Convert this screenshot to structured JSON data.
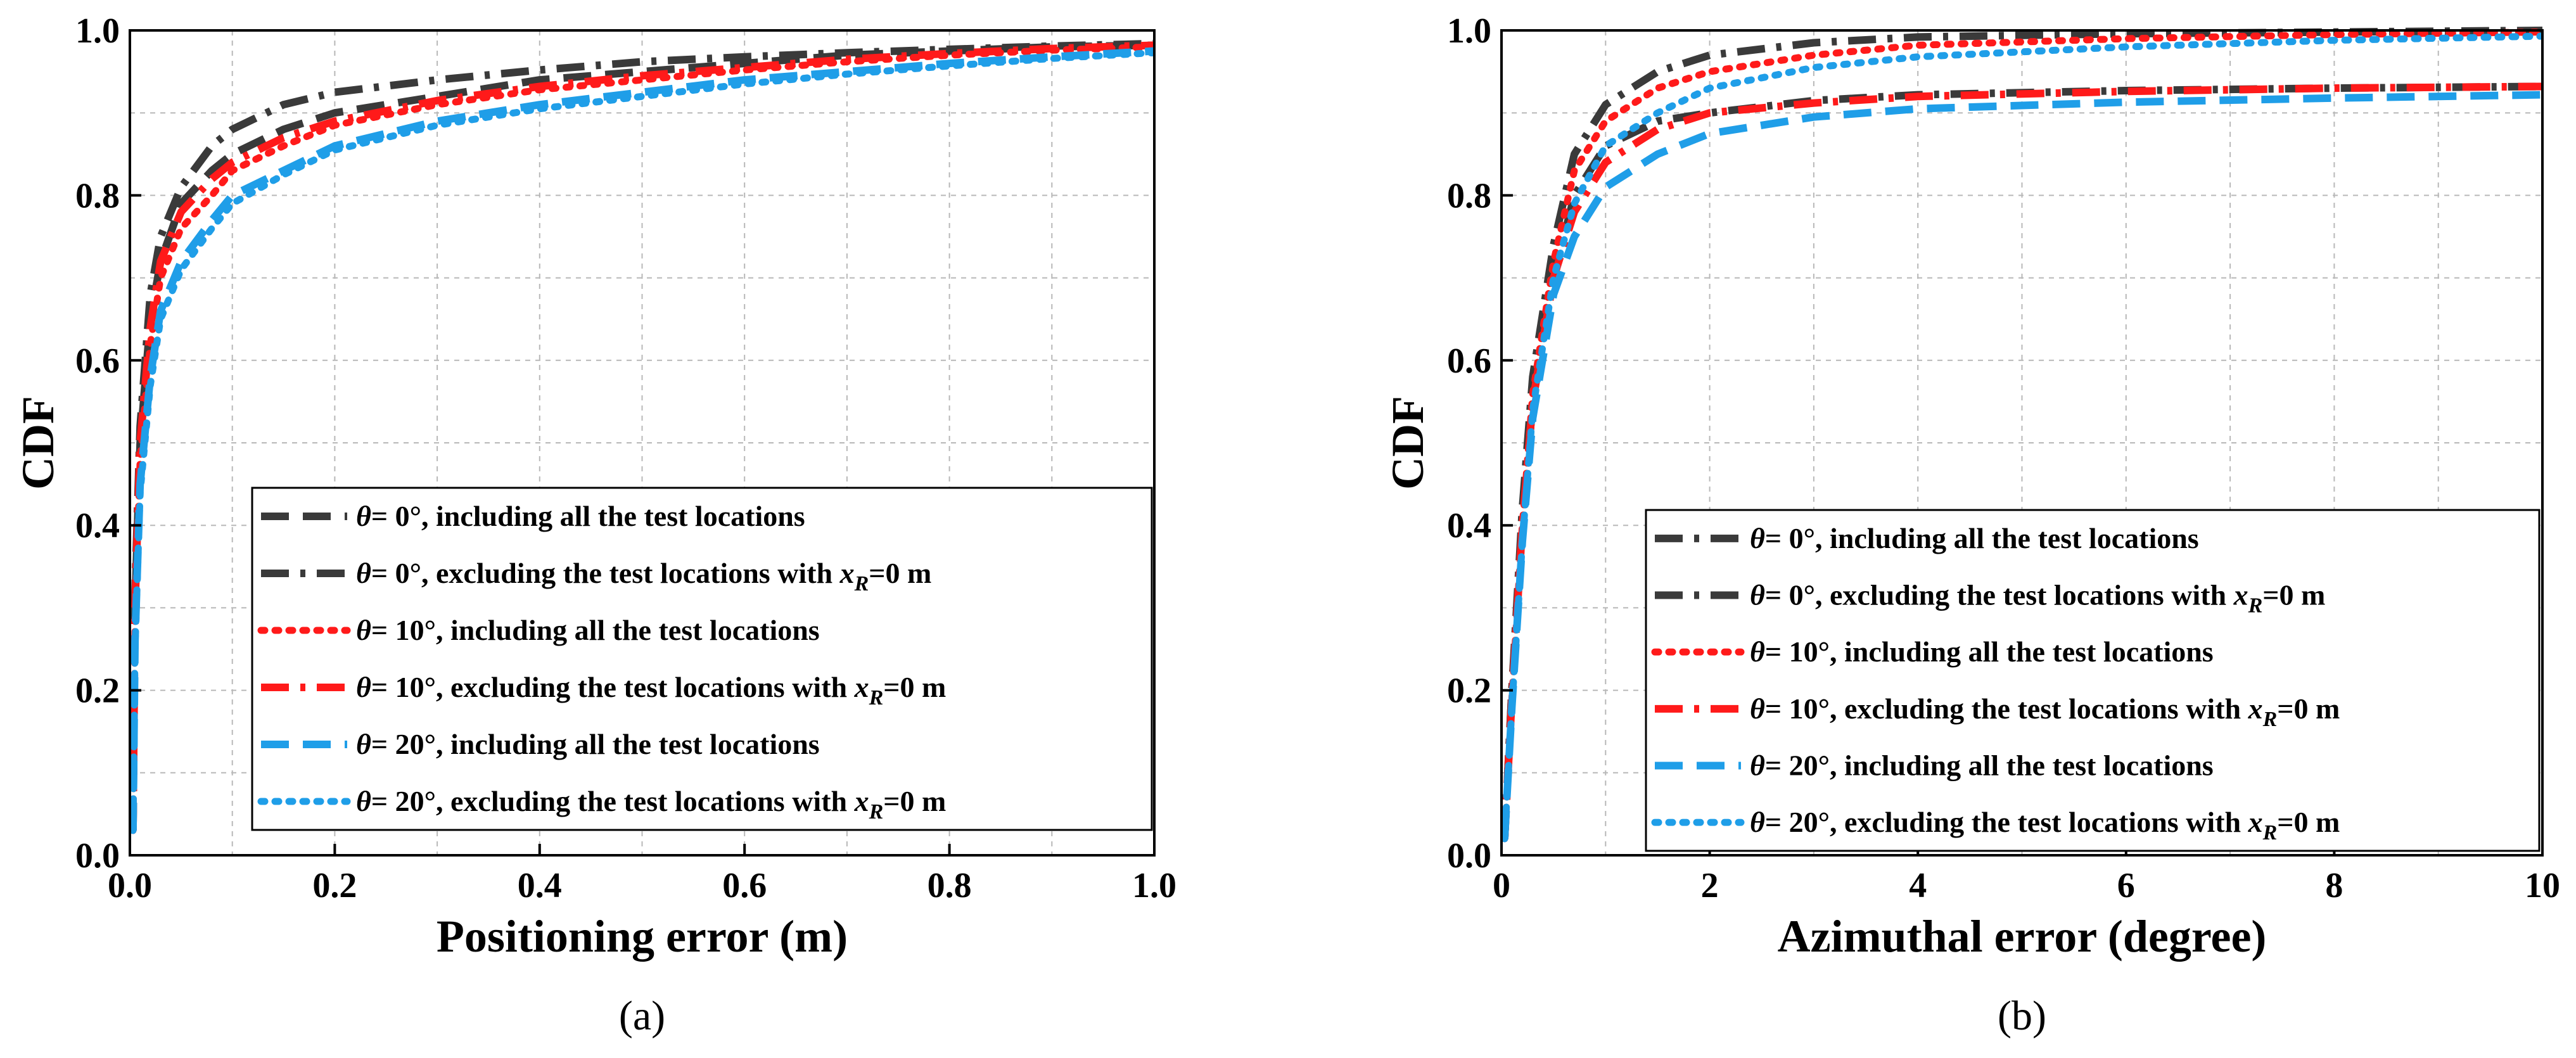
{
  "chart_data": [
    {
      "type": "line",
      "panel_label": "(a)",
      "xlabel": "Positioning error (m)",
      "ylabel": "CDF",
      "xlim": [
        0,
        1.0
      ],
      "ylim": [
        0,
        1.0
      ],
      "x_ticks": [
        "0.0",
        "0.2",
        "0.4",
        "0.6",
        "0.8",
        "1.0"
      ],
      "y_ticks": [
        "0.0",
        "0.2",
        "0.4",
        "0.6",
        "0.8",
        "1.0"
      ],
      "grid": true,
      "legend_position": "center-right",
      "series": [
        {
          "name": "θ= 0°, including all the test locations",
          "theta": "θ",
          "label_rest": "= 0°, including all the test locations",
          "sub": "",
          "color": "#3a3a3a",
          "style": "dash",
          "points": [
            [
              0.003,
              0.03
            ],
            [
              0.005,
              0.3
            ],
            [
              0.01,
              0.5
            ],
            [
              0.02,
              0.65
            ],
            [
              0.03,
              0.72
            ],
            [
              0.05,
              0.79
            ],
            [
              0.08,
              0.83
            ],
            [
              0.1,
              0.85
            ],
            [
              0.15,
              0.88
            ],
            [
              0.2,
              0.9
            ],
            [
              0.3,
              0.92
            ],
            [
              0.4,
              0.94
            ],
            [
              0.5,
              0.95
            ],
            [
              0.6,
              0.96
            ],
            [
              0.7,
              0.97
            ],
            [
              0.8,
              0.975
            ],
            [
              0.9,
              0.98
            ],
            [
              1.0,
              0.982
            ]
          ]
        },
        {
          "name": "θ= 0°, excluding the test locations with xR=0 m",
          "theta": "θ",
          "label_rest": "= 0°, excluding the test locations with ",
          "sub": "R",
          "label_tail": "=0 m",
          "color": "#3a3a3a",
          "style": "dashdot",
          "points": [
            [
              0.003,
              0.03
            ],
            [
              0.005,
              0.32
            ],
            [
              0.01,
              0.52
            ],
            [
              0.02,
              0.68
            ],
            [
              0.03,
              0.75
            ],
            [
              0.05,
              0.81
            ],
            [
              0.08,
              0.86
            ],
            [
              0.1,
              0.88
            ],
            [
              0.15,
              0.91
            ],
            [
              0.2,
              0.925
            ],
            [
              0.3,
              0.94
            ],
            [
              0.4,
              0.952
            ],
            [
              0.5,
              0.962
            ],
            [
              0.6,
              0.968
            ],
            [
              0.7,
              0.973
            ],
            [
              0.8,
              0.977
            ],
            [
              0.9,
              0.981
            ],
            [
              1.0,
              0.984
            ]
          ]
        },
        {
          "name": "θ= 10°, including all the test locations",
          "theta": "θ",
          "label_rest": "= 10°, including all the test locations",
          "sub": "",
          "color": "#ff1a1a",
          "style": "dot",
          "points": [
            [
              0.003,
              0.03
            ],
            [
              0.005,
              0.28
            ],
            [
              0.01,
              0.48
            ],
            [
              0.02,
              0.62
            ],
            [
              0.03,
              0.7
            ],
            [
              0.05,
              0.76
            ],
            [
              0.08,
              0.8
            ],
            [
              0.1,
              0.83
            ],
            [
              0.15,
              0.86
            ],
            [
              0.2,
              0.885
            ],
            [
              0.3,
              0.91
            ],
            [
              0.4,
              0.928
            ],
            [
              0.5,
              0.94
            ],
            [
              0.6,
              0.952
            ],
            [
              0.7,
              0.962
            ],
            [
              0.8,
              0.97
            ],
            [
              0.9,
              0.976
            ],
            [
              1.0,
              0.98
            ]
          ]
        },
        {
          "name": "θ= 10°, excluding the test locations with xR=0 m",
          "theta": "θ",
          "label_rest": "= 10°, excluding the test locations with ",
          "sub": "R",
          "label_tail": "=0 m",
          "color": "#ff1a1a",
          "style": "dashdot",
          "points": [
            [
              0.003,
              0.03
            ],
            [
              0.005,
              0.3
            ],
            [
              0.01,
              0.5
            ],
            [
              0.02,
              0.64
            ],
            [
              0.03,
              0.72
            ],
            [
              0.05,
              0.78
            ],
            [
              0.08,
              0.82
            ],
            [
              0.1,
              0.84
            ],
            [
              0.15,
              0.87
            ],
            [
              0.2,
              0.89
            ],
            [
              0.3,
              0.915
            ],
            [
              0.4,
              0.932
            ],
            [
              0.5,
              0.945
            ],
            [
              0.6,
              0.955
            ],
            [
              0.7,
              0.965
            ],
            [
              0.8,
              0.972
            ],
            [
              0.9,
              0.978
            ],
            [
              1.0,
              0.982
            ]
          ]
        },
        {
          "name": "θ= 20°, including all the test locations",
          "theta": "θ",
          "label_rest": "= 20°, including all the test locations",
          "sub": "",
          "color": "#1f9ee8",
          "style": "dash",
          "points": [
            [
              0.003,
              0.03
            ],
            [
              0.005,
              0.26
            ],
            [
              0.01,
              0.45
            ],
            [
              0.02,
              0.58
            ],
            [
              0.03,
              0.66
            ],
            [
              0.05,
              0.72
            ],
            [
              0.08,
              0.77
            ],
            [
              0.1,
              0.8
            ],
            [
              0.15,
              0.83
            ],
            [
              0.2,
              0.86
            ],
            [
              0.3,
              0.89
            ],
            [
              0.4,
              0.91
            ],
            [
              0.5,
              0.925
            ],
            [
              0.6,
              0.94
            ],
            [
              0.7,
              0.95
            ],
            [
              0.8,
              0.96
            ],
            [
              0.9,
              0.968
            ],
            [
              1.0,
              0.975
            ]
          ]
        },
        {
          "name": "θ= 20°, excluding the test locations with xR=0 m",
          "theta": "θ",
          "label_rest": "= 20°, excluding the test locations with ",
          "sub": "R",
          "label_tail": "=0 m",
          "color": "#1f9ee8",
          "style": "dot",
          "points": [
            [
              0.003,
              0.03
            ],
            [
              0.005,
              0.25
            ],
            [
              0.01,
              0.44
            ],
            [
              0.02,
              0.57
            ],
            [
              0.03,
              0.65
            ],
            [
              0.05,
              0.71
            ],
            [
              0.08,
              0.76
            ],
            [
              0.1,
              0.79
            ],
            [
              0.15,
              0.825
            ],
            [
              0.2,
              0.855
            ],
            [
              0.3,
              0.885
            ],
            [
              0.4,
              0.905
            ],
            [
              0.5,
              0.92
            ],
            [
              0.6,
              0.935
            ],
            [
              0.7,
              0.947
            ],
            [
              0.8,
              0.957
            ],
            [
              0.9,
              0.966
            ],
            [
              1.0,
              0.973
            ]
          ]
        }
      ]
    },
    {
      "type": "line",
      "panel_label": "(b)",
      "xlabel": "Azimuthal error (degree)",
      "ylabel": "CDF",
      "xlim": [
        0,
        10
      ],
      "ylim": [
        0,
        1.0
      ],
      "x_ticks": [
        "0",
        "2",
        "4",
        "6",
        "8",
        "10"
      ],
      "y_ticks": [
        "0.0",
        "0.2",
        "0.4",
        "0.6",
        "0.8",
        "1.0"
      ],
      "grid": true,
      "legend_position": "center-right",
      "series": [
        {
          "name": "θ= 0°, including all the test locations",
          "theta": "θ",
          "label_rest": "= 0°, including all the test locations",
          "sub": "",
          "color": "#3a3a3a",
          "style": "dashdot",
          "points": [
            [
              0.03,
              0.02
            ],
            [
              0.1,
              0.2
            ],
            [
              0.2,
              0.4
            ],
            [
              0.3,
              0.55
            ],
            [
              0.5,
              0.7
            ],
            [
              0.7,
              0.8
            ],
            [
              1.0,
              0.86
            ],
            [
              1.5,
              0.89
            ],
            [
              2,
              0.9
            ],
            [
              3,
              0.915
            ],
            [
              4,
              0.922
            ],
            [
              6,
              0.927
            ],
            [
              8,
              0.93
            ],
            [
              10,
              0.932
            ]
          ]
        },
        {
          "name": "θ= 0°, excluding the test locations with xR=0 m",
          "theta": "θ",
          "label_rest": "= 0°, excluding the test locations with ",
          "sub": "R",
          "label_tail": "=0 m",
          "color": "#3a3a3a",
          "style": "dashdot",
          "points": [
            [
              0.03,
              0.02
            ],
            [
              0.1,
              0.2
            ],
            [
              0.2,
              0.42
            ],
            [
              0.3,
              0.58
            ],
            [
              0.5,
              0.74
            ],
            [
              0.7,
              0.85
            ],
            [
              1.0,
              0.91
            ],
            [
              1.5,
              0.95
            ],
            [
              2,
              0.97
            ],
            [
              3,
              0.985
            ],
            [
              4,
              0.992
            ],
            [
              6,
              0.996
            ],
            [
              8,
              0.998
            ],
            [
              10,
              1.0
            ]
          ]
        },
        {
          "name": "θ= 10°, including all the test locations",
          "theta": "θ",
          "label_rest": "= 10°, including all the test locations",
          "sub": "",
          "color": "#ff1a1a",
          "style": "dot",
          "points": [
            [
              0.03,
              0.02
            ],
            [
              0.1,
              0.19
            ],
            [
              0.2,
              0.4
            ],
            [
              0.3,
              0.56
            ],
            [
              0.5,
              0.72
            ],
            [
              0.7,
              0.83
            ],
            [
              1.0,
              0.89
            ],
            [
              1.5,
              0.93
            ],
            [
              2,
              0.95
            ],
            [
              3,
              0.97
            ],
            [
              4,
              0.982
            ],
            [
              6,
              0.99
            ],
            [
              8,
              0.995
            ],
            [
              10,
              0.998
            ]
          ]
        },
        {
          "name": "θ= 10°, excluding the test locations with xR=0 m",
          "theta": "θ",
          "label_rest": "= 10°, excluding the test locations with ",
          "sub": "R",
          "label_tail": "=0 m",
          "color": "#ff1a1a",
          "style": "dashdot",
          "points": [
            [
              0.03,
              0.02
            ],
            [
              0.1,
              0.19
            ],
            [
              0.2,
              0.4
            ],
            [
              0.3,
              0.55
            ],
            [
              0.5,
              0.7
            ],
            [
              0.7,
              0.78
            ],
            [
              1.0,
              0.84
            ],
            [
              1.5,
              0.88
            ],
            [
              2,
              0.9
            ],
            [
              3,
              0.912
            ],
            [
              4,
              0.92
            ],
            [
              6,
              0.926
            ],
            [
              8,
              0.93
            ],
            [
              10,
              0.932
            ]
          ]
        },
        {
          "name": "θ= 20°, including all the test locations",
          "theta": "θ",
          "label_rest": "= 20°, including all the test locations",
          "sub": "",
          "color": "#1f9ee8",
          "style": "dash",
          "points": [
            [
              0.03,
              0.02
            ],
            [
              0.1,
              0.18
            ],
            [
              0.2,
              0.38
            ],
            [
              0.3,
              0.53
            ],
            [
              0.5,
              0.68
            ],
            [
              0.7,
              0.75
            ],
            [
              1.0,
              0.81
            ],
            [
              1.5,
              0.85
            ],
            [
              2,
              0.875
            ],
            [
              3,
              0.895
            ],
            [
              4,
              0.905
            ],
            [
              6,
              0.913
            ],
            [
              8,
              0.918
            ],
            [
              10,
              0.922
            ]
          ]
        },
        {
          "name": "θ= 20°, excluding the test locations with xR=0 m",
          "theta": "θ",
          "label_rest": "= 20°, excluding the test locations with ",
          "sub": "R",
          "label_tail": "=0 m",
          "color": "#1f9ee8",
          "style": "dot",
          "points": [
            [
              0.03,
              0.02
            ],
            [
              0.1,
              0.18
            ],
            [
              0.2,
              0.38
            ],
            [
              0.3,
              0.54
            ],
            [
              0.5,
              0.7
            ],
            [
              0.7,
              0.79
            ],
            [
              1.0,
              0.86
            ],
            [
              1.5,
              0.9
            ],
            [
              2,
              0.93
            ],
            [
              3,
              0.955
            ],
            [
              4,
              0.968
            ],
            [
              6,
              0.98
            ],
            [
              8,
              0.988
            ],
            [
              10,
              0.993
            ]
          ]
        }
      ]
    }
  ]
}
